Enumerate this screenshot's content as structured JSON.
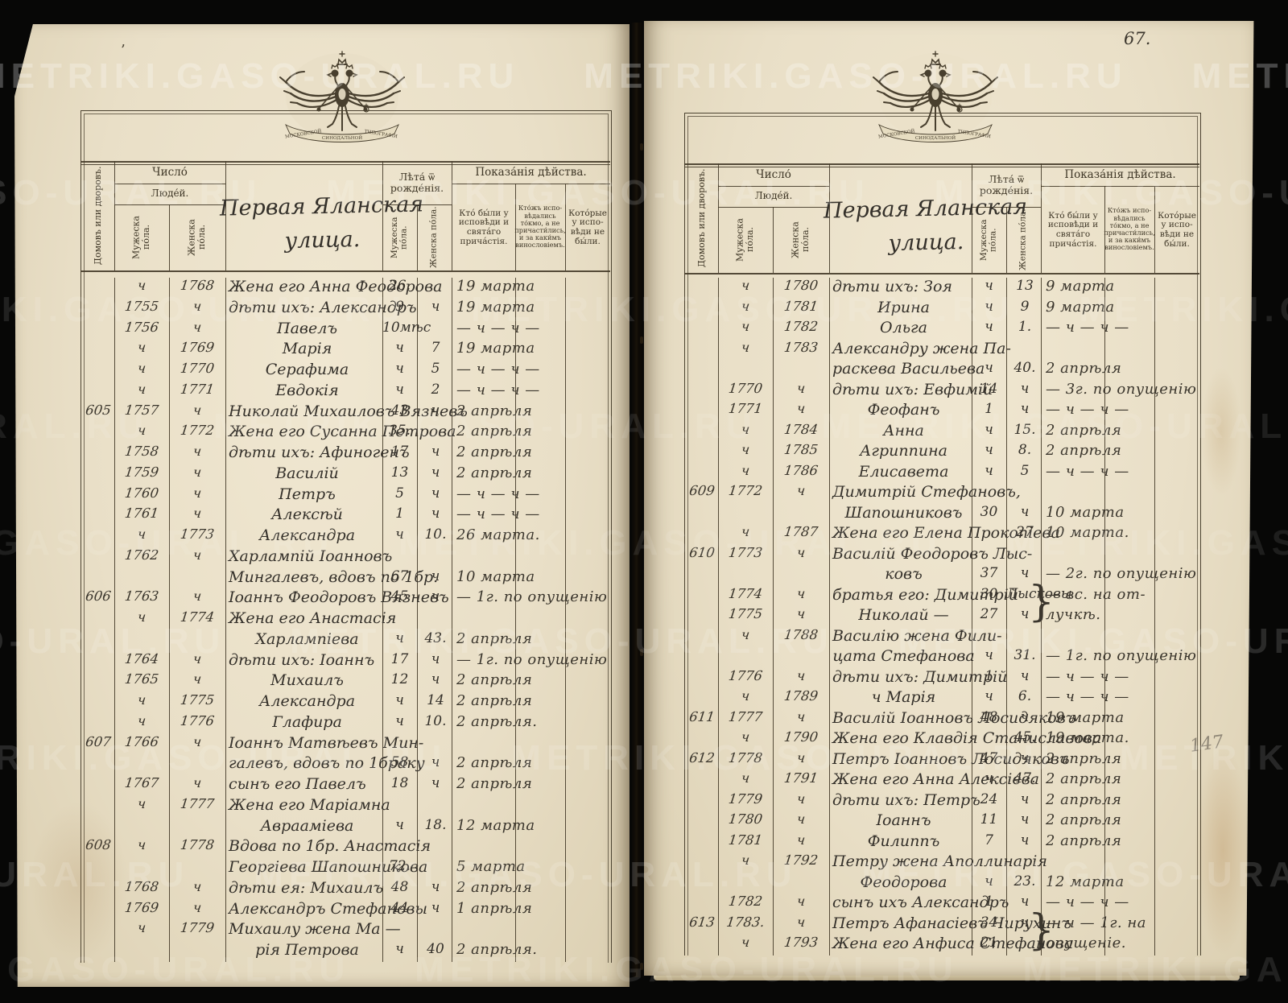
{
  "meta": {
    "page_number": "67.",
    "pencil_note": "147",
    "ink_mark": "’"
  },
  "watermark": {
    "text": "METRIKI.GASO-URAL.RU"
  },
  "crest": {
    "ribbon_parts": [
      "МОСКОВСКОЙ",
      "СИНОДАЛЬНОЙ",
      "ТИПОГРАФІИ"
    ]
  },
  "register_header": {
    "chislo": "Число́",
    "lyudej": "Люде́й.",
    "domov": "Домовъ или дворовъ.",
    "muzheska": "Мужеска по́ла.",
    "zhenska": "Женска по́ла.",
    "leta": "Лѣта́ ѿ\nрожде́нія.",
    "pokazaniya": "Показа́нія дѣйства.",
    "col_confessed": "Кто́ бы́ли у исповѣди и свята́го прича́стія.",
    "col_confessed_only": "Кто́жъ испо­вѣдались то́кмо, а не причасти́лись, и за каки́мъ винословіемъ.",
    "col_absent": "Кото́рые у испо­вѣди не бы́ли."
  },
  "pages": {
    "left": {
      "street": "Первая Яланская\nулица.",
      "rows": [
        {
          "m": "ч",
          "f": "1768",
          "name": "Жена его Анна Феодорова",
          "am": "26.",
          "act": "19 марта"
        },
        {
          "m": "1755",
          "f": "ч",
          "name": "дѣти ихъ: Александръ",
          "am": "9",
          "af": "ч",
          "act": "19 марта"
        },
        {
          "m": "1756",
          "f": "ч",
          "name": "Павелъ",
          "align": "c",
          "am": "10мѣс",
          "act": "— ч — ч —"
        },
        {
          "m": "ч",
          "f": "1769",
          "name": "Марія",
          "align": "c",
          "am": "ч",
          "af": "7",
          "act": "19 марта"
        },
        {
          "m": "ч",
          "f": "1770",
          "name": "Серафима",
          "align": "c",
          "am": "ч",
          "af": "5",
          "act": "— ч — ч —"
        },
        {
          "m": "ч",
          "f": "1771",
          "name": "Евдокія",
          "align": "c",
          "am": "ч",
          "af": "2",
          "act": "— ч — ч —"
        },
        {
          "h": "605",
          "m": "1757",
          "f": "ч",
          "name": "Николай Михаиловъ Вязневъ",
          "am": "43",
          "af": "ч",
          "act": "2 апрѣля"
        },
        {
          "m": "ч",
          "f": "1772",
          "name": "Жена его Сусанна Петрова",
          "am": "35.",
          "act": "2 апрѣля"
        },
        {
          "m": "1758",
          "f": "ч",
          "name": "дѣти ихъ: Афиногенъ",
          "am": "17",
          "af": "ч",
          "act": "2 апрѣля"
        },
        {
          "m": "1759",
          "f": "ч",
          "name": "Василій",
          "align": "c",
          "am": "13",
          "af": "ч",
          "act": "2 апрѣля"
        },
        {
          "m": "1760",
          "f": "ч",
          "name": "Петръ",
          "align": "c",
          "am": "5",
          "af": "ч",
          "act": "— ч — ч —"
        },
        {
          "m": "1761",
          "f": "ч",
          "name": "Алексѣй",
          "align": "c",
          "am": "1",
          "af": "ч",
          "act": "— ч — ч —"
        },
        {
          "m": "ч",
          "f": "1773",
          "name": "Александра",
          "align": "c",
          "am": "ч",
          "af": "10.",
          "act": "26 марта."
        },
        {
          "m": "1762",
          "f": "ч",
          "name": "Харлампій Іоанновъ"
        },
        {
          "name": "Мингалевъ, вдовъ по 1бр.",
          "align": "c",
          "am": "67",
          "af": "ч",
          "act": "10 марта"
        },
        {
          "h": "606",
          "m": "1763",
          "f": "ч",
          "name": "Іоаннъ Феодоровъ Вязневъ",
          "am": "45",
          "af": "ч",
          "act": "— 1г. по опущенію"
        },
        {
          "m": "ч",
          "f": "1774",
          "name": "Жена его Анастасія"
        },
        {
          "name": "Харлампіева",
          "align": "c",
          "am": "ч",
          "af": "43.",
          "act": "2 апрѣля"
        },
        {
          "m": "1764",
          "f": "ч",
          "name": "дѣти ихъ: Іоаннъ",
          "am": "17",
          "af": "ч",
          "act": "— 1г. по опущенію"
        },
        {
          "m": "1765",
          "f": "ч",
          "name": "Михаилъ",
          "align": "c",
          "am": "12",
          "af": "ч",
          "act": "2 апрѣля"
        },
        {
          "m": "ч",
          "f": "1775",
          "name": "Александра",
          "align": "c",
          "am": "ч",
          "af": "14",
          "act": "2 апрѣля"
        },
        {
          "m": "ч",
          "f": "1776",
          "name": "Глафира",
          "align": "c",
          "am": "ч",
          "af": "10.",
          "act": "2 апрѣля."
        },
        {
          "h": "607",
          "m": "1766",
          "f": "ч",
          "name": "Іоаннъ Матвѣевъ Мин-"
        },
        {
          "name": "галевъ, вдовъ по 1браку",
          "align": "c",
          "am": "58",
          "af": "ч",
          "act": "2 апрѣля"
        },
        {
          "m": "1767",
          "f": "ч",
          "name": "сынъ его Павелъ",
          "am": "18",
          "af": "ч",
          "act": "2 апрѣля"
        },
        {
          "m": "ч",
          "f": "1777",
          "name": "Жена его Маріамна"
        },
        {
          "name": "Аврааміева",
          "align": "c",
          "am": "ч",
          "af": "18.",
          "act": "12 марта"
        },
        {
          "h": "608",
          "m": "ч",
          "f": "1778",
          "name": "Вдова по 1бр. Анастасія"
        },
        {
          "name": "Георгіева Шапошникова",
          "align": "c",
          "am": "72.",
          "act": "5 марта"
        },
        {
          "m": "1768",
          "f": "ч",
          "name": "дѣти ея: Михаилъ",
          "am": "48",
          "af": "ч",
          "act": "2 апрѣля"
        },
        {
          "m": "1769",
          "f": "ч",
          "name": "Александръ Стефановы",
          "am": "44",
          "af": "ч",
          "act": "1 апрѣля"
        },
        {
          "m": "ч",
          "f": "1779",
          "name": "Михаилу жена Ма —"
        },
        {
          "name": "рія Петрова",
          "align": "c",
          "am": "ч",
          "af": "40",
          "act": "2 апрѣля."
        }
      ]
    },
    "right": {
      "street": "Первая Яланская\nулица.",
      "rows": [
        {
          "m": "ч",
          "f": "1780",
          "name": "дѣти ихъ: Зоя",
          "am": "ч",
          "af": "13",
          "act": "9 марта"
        },
        {
          "m": "ч",
          "f": "1781",
          "name": "Ирина",
          "align": "c",
          "am": "ч",
          "af": "9",
          "act": "9 марта"
        },
        {
          "m": "ч",
          "f": "1782",
          "name": "Ольга",
          "align": "c",
          "am": "ч",
          "af": "1.",
          "act": "— ч — ч —"
        },
        {
          "m": "ч",
          "f": "1783",
          "name": "Александру жена Па-"
        },
        {
          "name": "раскева Васильева",
          "align": "c",
          "am": "ч",
          "af": "40.",
          "act": "2 апрѣля"
        },
        {
          "m": "1770",
          "f": "ч",
          "name": "дѣти ихъ: Евфимій",
          "am": "14",
          "af": "ч",
          "act": "— 3г. по опущенію"
        },
        {
          "m": "1771",
          "f": "ч",
          "name": "Феофанъ",
          "align": "c",
          "am": "1",
          "af": "ч",
          "act": "— ч — ч —"
        },
        {
          "m": "ч",
          "f": "1784",
          "name": "Анна",
          "align": "c",
          "am": "ч",
          "af": "15.",
          "act": "2 апрѣля"
        },
        {
          "m": "ч",
          "f": "1785",
          "name": "Агриппина",
          "align": "c",
          "am": "ч",
          "af": "8.",
          "act": "2 апрѣля"
        },
        {
          "m": "ч",
          "f": "1786",
          "name": "Елисавета",
          "align": "c",
          "am": "ч",
          "af": "5",
          "act": "— ч — ч —"
        },
        {
          "h": "609",
          "m": "1772",
          "f": "ч",
          "name": "Димитрій Стефановъ,"
        },
        {
          "name": "Шапошниковъ",
          "align": "c",
          "am": "30",
          "af": "ч",
          "act": "10 марта"
        },
        {
          "m": "ч",
          "f": "1787",
          "name": "Жена его Елена Прокопіева",
          "af": "27",
          "act": "10 марта."
        },
        {
          "h": "610",
          "m": "1773",
          "f": "ч",
          "name": "Василій Феодоровъ Лыс-"
        },
        {
          "name": "ковъ",
          "align": "c",
          "am": "37",
          "af": "ч",
          "act": "— 2г. по опущенію"
        },
        {
          "m": "1774",
          "f": "ч",
          "name": "братья его: Димитрій",
          "am": "30",
          "af": "Лысковы",
          "act": "— вс. на от-",
          "brace": true
        },
        {
          "m": "1775",
          "f": "ч",
          "name": "Николай —",
          "align": "c",
          "am": "27",
          "af": "ч",
          "act": "лучкѣ."
        },
        {
          "m": "ч",
          "f": "1788",
          "name": "Василію жена Фили-"
        },
        {
          "name": "цата Стефанова",
          "align": "c",
          "am": "ч",
          "af": "31.",
          "act": "— 1г. по опущенію"
        },
        {
          "m": "1776",
          "f": "ч",
          "name": "дѣти ихъ: Димитрій",
          "am": "1",
          "af": "ч",
          "act": "— ч — ч —"
        },
        {
          "m": "ч",
          "f": "1789",
          "name": "ч Марія",
          "align": "c",
          "am": "ч",
          "af": "6.",
          "act": "— ч — ч —"
        },
        {
          "h": "611",
          "m": "1777",
          "f": "ч",
          "name": "Василій Іоанновъ Лосидяковъ",
          "am": "48",
          "af": "ч",
          "act": "19 марта"
        },
        {
          "m": "ч",
          "f": "1790",
          "name": "Жена его Клавдія Станиславова",
          "af": "45.",
          "act": "19 марта."
        },
        {
          "h": "612",
          "m": "1778",
          "f": "ч",
          "name": "Петръ Іоанновъ Лосидяковъ",
          "am": "47",
          "af": "ч",
          "act": "2 апрѣля"
        },
        {
          "m": "ч",
          "f": "1791",
          "name": "Жена его Анна Алексіева",
          "am": "ч",
          "af": "47.",
          "act": "2 апрѣля"
        },
        {
          "m": "1779",
          "f": "ч",
          "name": "дѣти ихъ: Петръ",
          "am": "24",
          "af": "ч",
          "act": "2 апрѣля"
        },
        {
          "m": "1780",
          "f": "ч",
          "name": "Іоаннъ",
          "align": "c",
          "am": "11",
          "af": "ч",
          "act": "2 апрѣля"
        },
        {
          "m": "1781",
          "f": "ч",
          "name": "Филиппъ",
          "align": "c",
          "am": "7",
          "af": "ч",
          "act": "2 апрѣля"
        },
        {
          "m": "ч",
          "f": "1792",
          "name": "Петру жена Аполлинарія"
        },
        {
          "name": "Феодорова",
          "align": "c",
          "am": "ч",
          "af": "23.",
          "act": "12 марта"
        },
        {
          "m": "1782",
          "f": "ч",
          "name": "сынъ ихъ Александръ",
          "am": "1",
          "af": "ч",
          "act": "— ч — ч —"
        },
        {
          "h": "613",
          "m": "1783.",
          "f": "ч",
          "name": "Петръ Афанасіевъ Чирухинъ",
          "am": "34",
          "af": "ч",
          "act": "— ч — 1г. на",
          "brace": true
        },
        {
          "m": "ч",
          "f": "1793",
          "name": "Жена его Анфиса Стефанова",
          "am": "21",
          "act": "опущеніе."
        }
      ]
    }
  }
}
